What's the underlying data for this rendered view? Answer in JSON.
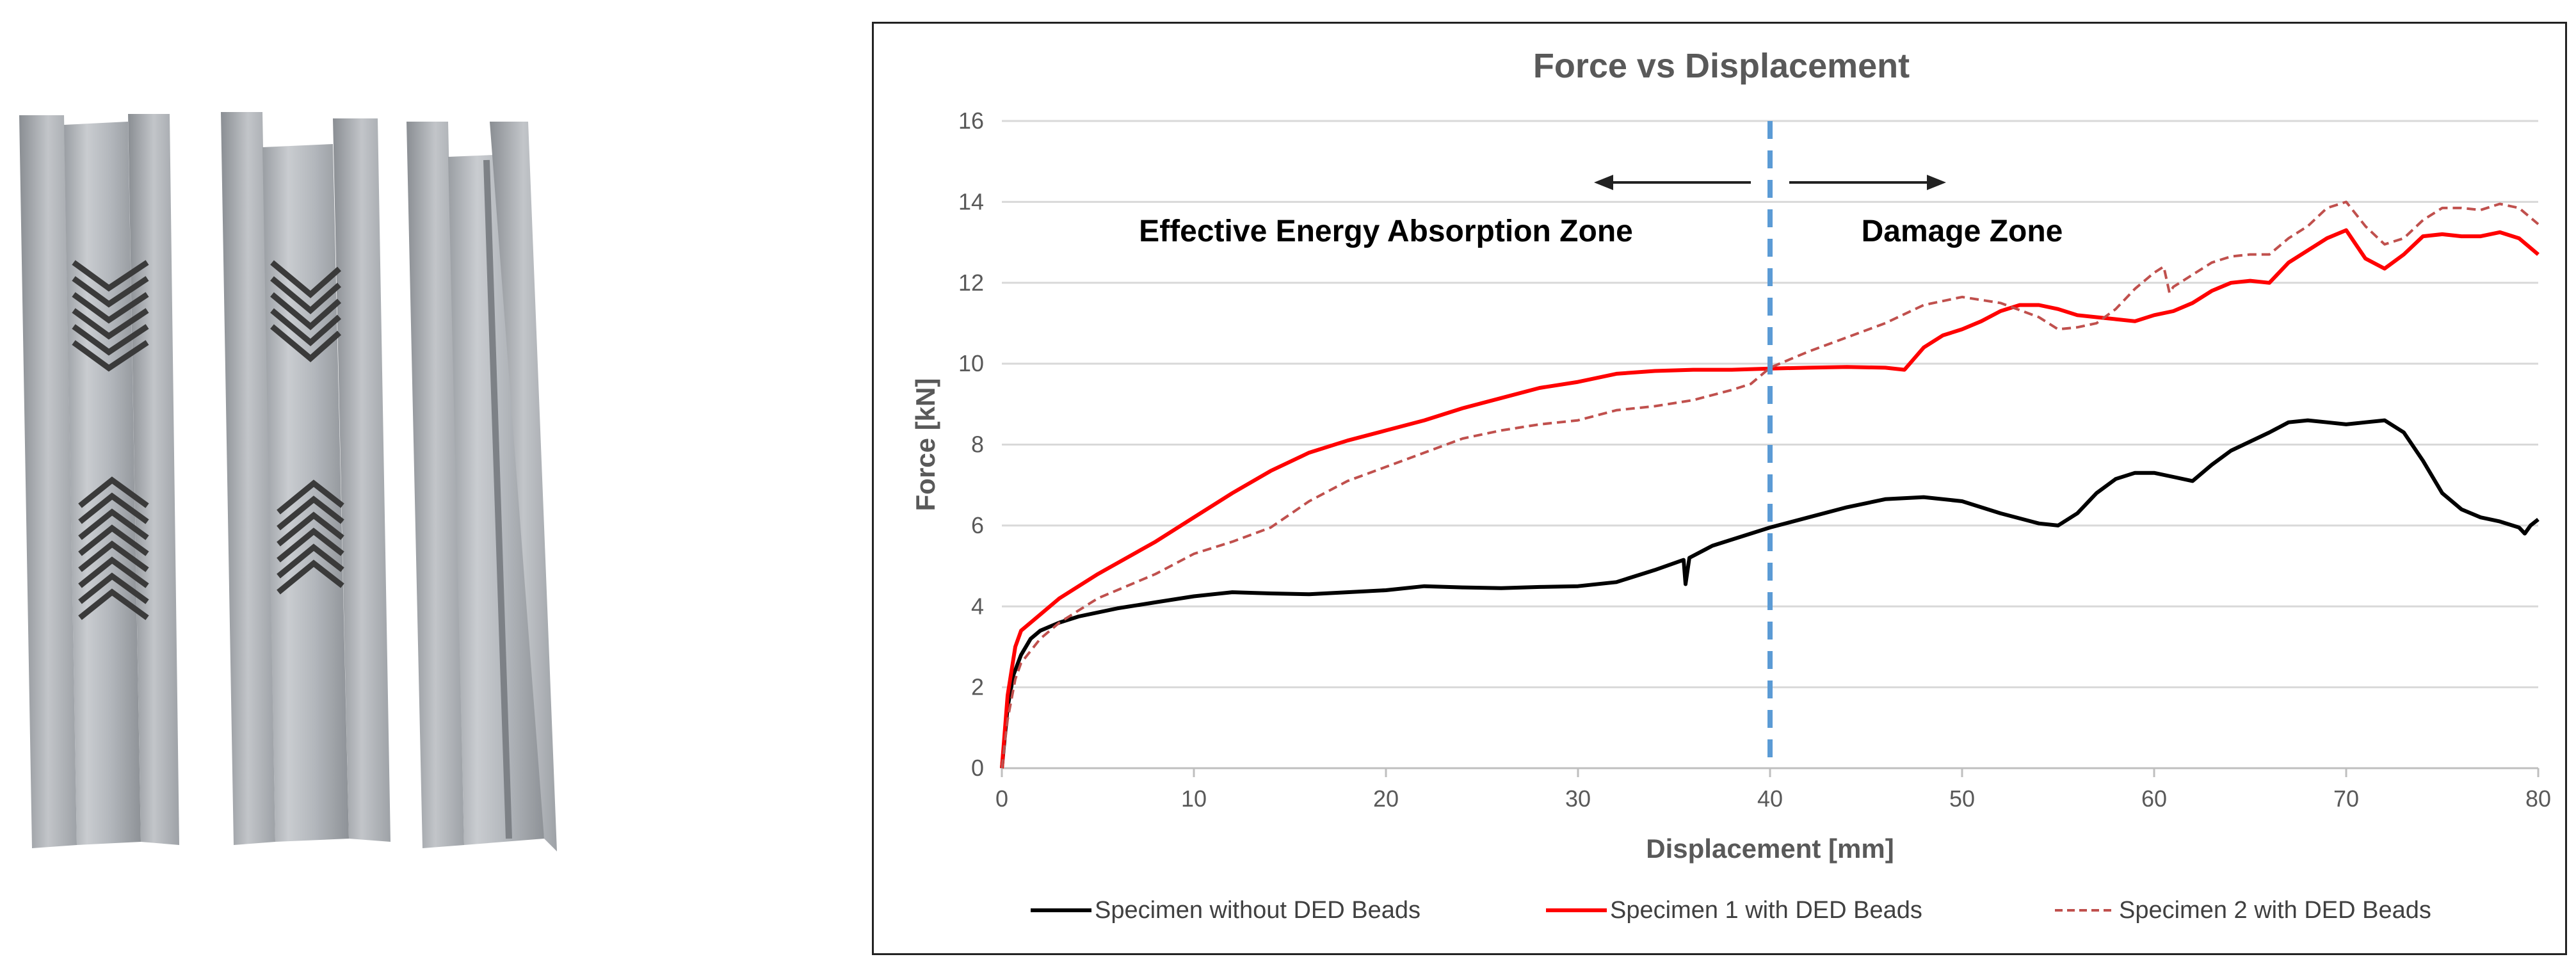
{
  "chart_data": {
    "type": "line",
    "title": "Force vs Displacement",
    "xlabel": "Displacement [mm]",
    "ylabel": "Force [kN]",
    "xlim": [
      0,
      80
    ],
    "ylim": [
      0,
      16
    ],
    "x_ticks": [
      "0",
      "10",
      "20",
      "30",
      "40",
      "50",
      "60",
      "70",
      "80"
    ],
    "y_ticks": [
      "0",
      "2",
      "4",
      "6",
      "8",
      "10",
      "12",
      "14",
      "16"
    ],
    "grid": "horizontal",
    "legend_position": "bottom",
    "annotations": {
      "divider_x": 40,
      "left_zone": "Effective Energy Absorption Zone",
      "right_zone": "Damage Zone"
    },
    "series": [
      {
        "name": "Specimen without DED  Beads",
        "color": "#000000",
        "style": "solid",
        "points": [
          [
            0,
            0
          ],
          [
            0.3,
            1.5
          ],
          [
            0.6,
            2.3
          ],
          [
            1,
            2.8
          ],
          [
            1.5,
            3.2
          ],
          [
            2,
            3.4
          ],
          [
            3,
            3.6
          ],
          [
            4,
            3.75
          ],
          [
            6,
            3.95
          ],
          [
            8,
            4.1
          ],
          [
            10,
            4.25
          ],
          [
            12,
            4.35
          ],
          [
            14,
            4.32
          ],
          [
            16,
            4.3
          ],
          [
            18,
            4.35
          ],
          [
            20,
            4.4
          ],
          [
            22,
            4.5
          ],
          [
            24,
            4.47
          ],
          [
            26,
            4.45
          ],
          [
            28,
            4.48
          ],
          [
            30,
            4.5
          ],
          [
            32,
            4.6
          ],
          [
            34,
            4.9
          ],
          [
            35.5,
            5.15
          ],
          [
            35.6,
            4.55
          ],
          [
            35.8,
            5.2
          ],
          [
            37,
            5.5
          ],
          [
            39,
            5.8
          ],
          [
            40,
            5.95
          ],
          [
            42,
            6.2
          ],
          [
            44,
            6.45
          ],
          [
            46,
            6.65
          ],
          [
            48,
            6.7
          ],
          [
            50,
            6.6
          ],
          [
            52,
            6.3
          ],
          [
            54,
            6.05
          ],
          [
            55,
            6.0
          ],
          [
            56,
            6.3
          ],
          [
            57,
            6.8
          ],
          [
            58,
            7.15
          ],
          [
            59,
            7.3
          ],
          [
            60,
            7.3
          ],
          [
            61,
            7.2
          ],
          [
            62,
            7.1
          ],
          [
            63,
            7.5
          ],
          [
            64,
            7.85
          ],
          [
            66,
            8.3
          ],
          [
            67,
            8.55
          ],
          [
            68,
            8.6
          ],
          [
            69,
            8.55
          ],
          [
            70,
            8.5
          ],
          [
            71,
            8.55
          ],
          [
            72,
            8.6
          ],
          [
            73,
            8.3
          ],
          [
            74,
            7.6
          ],
          [
            75,
            6.8
          ],
          [
            76,
            6.4
          ],
          [
            77,
            6.2
          ],
          [
            78,
            6.1
          ],
          [
            79,
            5.95
          ],
          [
            79.3,
            5.8
          ],
          [
            79.6,
            6.0
          ],
          [
            80,
            6.15
          ]
        ]
      },
      {
        "name": "Specimen 1 with DED Beads",
        "color": "#ff0000",
        "style": "solid",
        "points": [
          [
            0,
            0
          ],
          [
            0.3,
            1.8
          ],
          [
            0.7,
            3.0
          ],
          [
            1,
            3.4
          ],
          [
            2,
            3.8
          ],
          [
            3,
            4.2
          ],
          [
            5,
            4.8
          ],
          [
            8,
            5.6
          ],
          [
            10,
            6.2
          ],
          [
            12,
            6.8
          ],
          [
            14,
            7.35
          ],
          [
            16,
            7.8
          ],
          [
            18,
            8.1
          ],
          [
            20,
            8.35
          ],
          [
            22,
            8.6
          ],
          [
            24,
            8.9
          ],
          [
            26,
            9.15
          ],
          [
            28,
            9.4
          ],
          [
            30,
            9.55
          ],
          [
            32,
            9.75
          ],
          [
            34,
            9.82
          ],
          [
            36,
            9.85
          ],
          [
            38,
            9.85
          ],
          [
            40,
            9.88
          ],
          [
            42,
            9.9
          ],
          [
            44,
            9.92
          ],
          [
            46,
            9.9
          ],
          [
            47,
            9.85
          ],
          [
            48,
            10.4
          ],
          [
            49,
            10.7
          ],
          [
            50,
            10.85
          ],
          [
            51,
            11.05
          ],
          [
            52,
            11.3
          ],
          [
            53,
            11.45
          ],
          [
            54,
            11.45
          ],
          [
            55,
            11.35
          ],
          [
            56,
            11.2
          ],
          [
            57,
            11.15
          ],
          [
            58,
            11.1
          ],
          [
            59,
            11.05
          ],
          [
            60,
            11.2
          ],
          [
            61,
            11.3
          ],
          [
            62,
            11.5
          ],
          [
            63,
            11.8
          ],
          [
            64,
            12.0
          ],
          [
            65,
            12.05
          ],
          [
            66,
            12.0
          ],
          [
            67,
            12.5
          ],
          [
            68,
            12.8
          ],
          [
            69,
            13.1
          ],
          [
            70,
            13.3
          ],
          [
            71,
            12.6
          ],
          [
            72,
            12.35
          ],
          [
            73,
            12.7
          ],
          [
            74,
            13.15
          ],
          [
            75,
            13.2
          ],
          [
            76,
            13.15
          ],
          [
            77,
            13.15
          ],
          [
            78,
            13.25
          ],
          [
            79,
            13.1
          ],
          [
            80,
            12.7
          ]
        ]
      },
      {
        "name": "Specimen 2 with DED Beads",
        "color": "#c0504d",
        "style": "dashed",
        "points": [
          [
            0,
            0
          ],
          [
            0.3,
            1.2
          ],
          [
            0.7,
            2.2
          ],
          [
            1,
            2.6
          ],
          [
            2,
            3.2
          ],
          [
            3,
            3.6
          ],
          [
            5,
            4.2
          ],
          [
            8,
            4.8
          ],
          [
            10,
            5.3
          ],
          [
            12,
            5.6
          ],
          [
            14,
            5.95
          ],
          [
            16,
            6.6
          ],
          [
            18,
            7.1
          ],
          [
            20,
            7.45
          ],
          [
            22,
            7.8
          ],
          [
            24,
            8.15
          ],
          [
            26,
            8.35
          ],
          [
            28,
            8.5
          ],
          [
            30,
            8.6
          ],
          [
            32,
            8.85
          ],
          [
            34,
            8.95
          ],
          [
            36,
            9.1
          ],
          [
            38,
            9.35
          ],
          [
            39,
            9.5
          ],
          [
            40,
            9.9
          ],
          [
            42,
            10.3
          ],
          [
            44,
            10.65
          ],
          [
            46,
            11.0
          ],
          [
            48,
            11.45
          ],
          [
            50,
            11.65
          ],
          [
            52,
            11.5
          ],
          [
            54,
            11.15
          ],
          [
            55,
            10.85
          ],
          [
            56,
            10.9
          ],
          [
            57,
            11.0
          ],
          [
            58,
            11.35
          ],
          [
            59,
            11.85
          ],
          [
            60,
            12.25
          ],
          [
            60.5,
            12.4
          ],
          [
            60.8,
            11.75
          ],
          [
            61,
            11.9
          ],
          [
            62,
            12.2
          ],
          [
            63,
            12.5
          ],
          [
            64,
            12.65
          ],
          [
            65,
            12.7
          ],
          [
            66,
            12.7
          ],
          [
            67,
            13.1
          ],
          [
            68,
            13.4
          ],
          [
            69,
            13.85
          ],
          [
            70,
            14.0
          ],
          [
            71,
            13.4
          ],
          [
            72,
            12.95
          ],
          [
            73,
            13.1
          ],
          [
            74,
            13.55
          ],
          [
            75,
            13.85
          ],
          [
            76,
            13.85
          ],
          [
            77,
            13.8
          ],
          [
            78,
            13.95
          ],
          [
            79,
            13.85
          ],
          [
            80,
            13.45
          ]
        ]
      }
    ]
  }
}
